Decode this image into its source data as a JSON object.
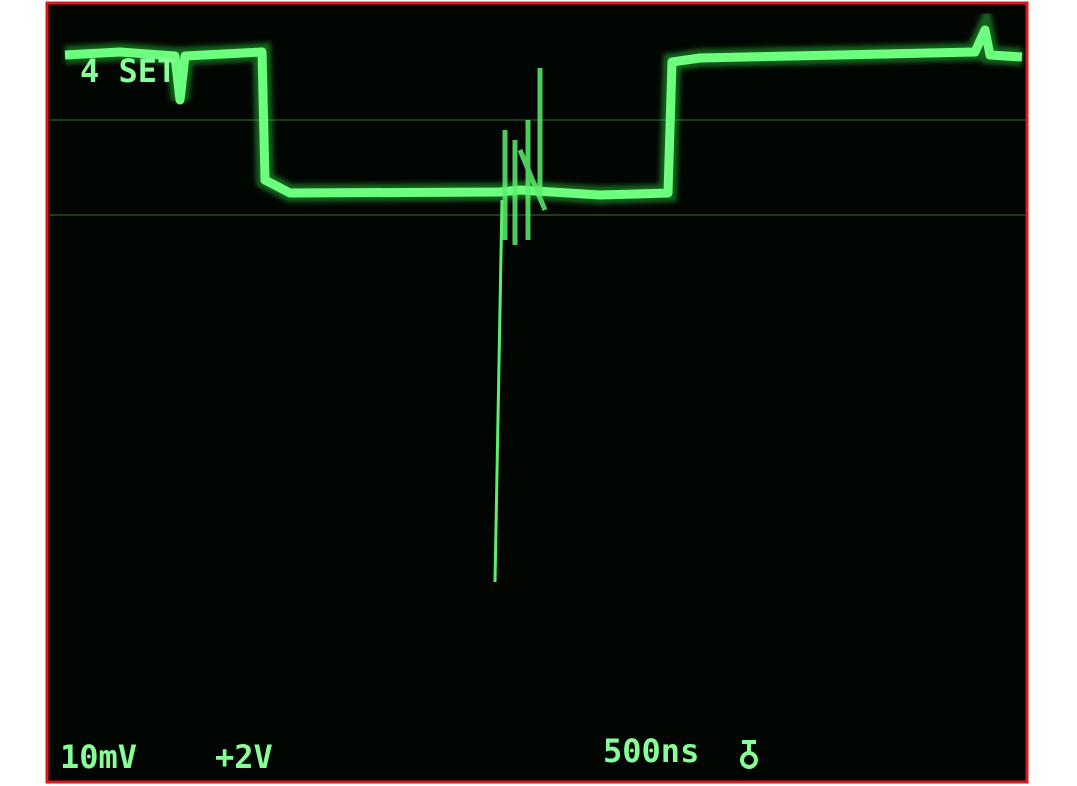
{
  "screen": {
    "channel_label": "4 SET",
    "volts_per_div": "10mV",
    "offset": "+2V",
    "time_per_div": "500ns"
  }
}
